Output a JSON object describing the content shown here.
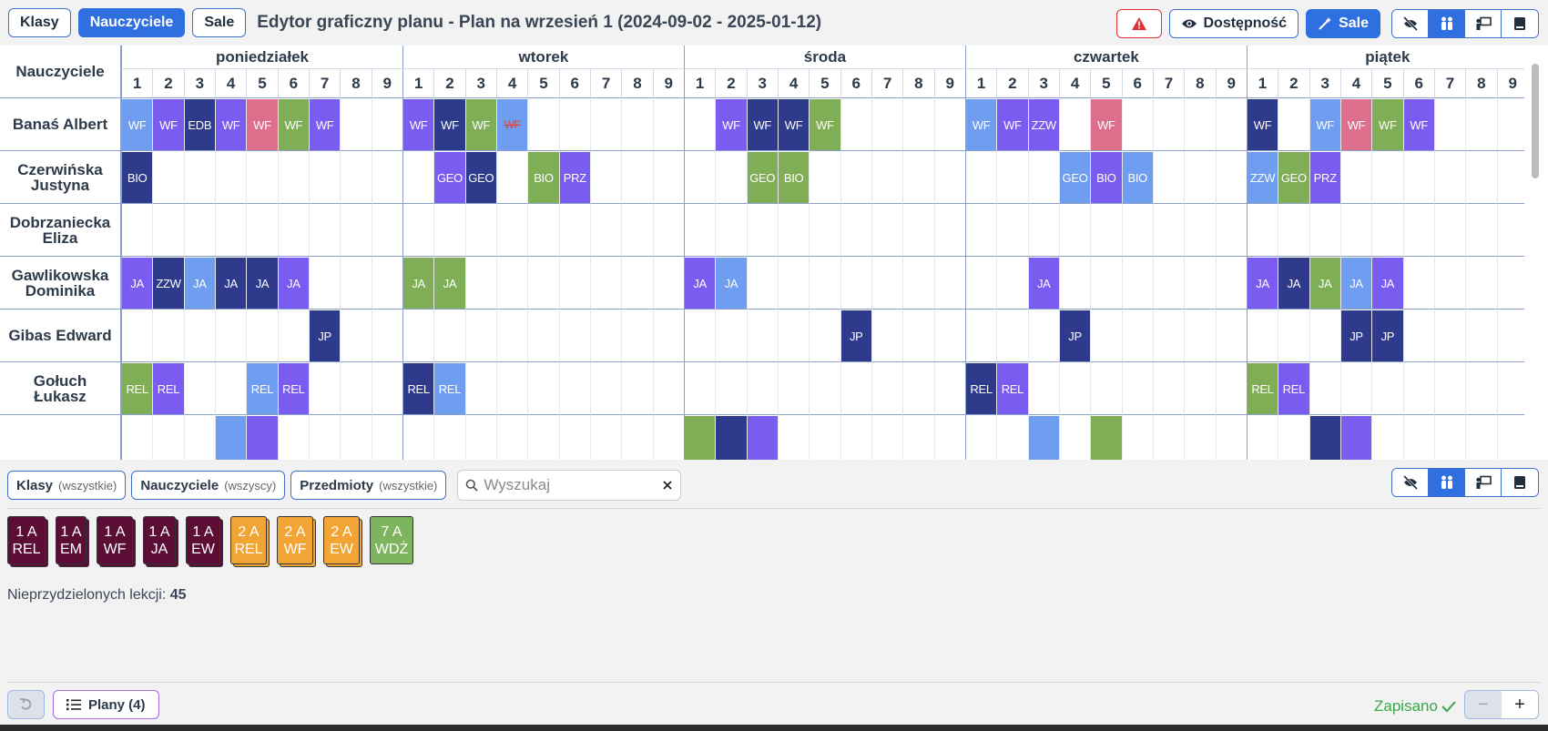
{
  "toolbar": {
    "classes_label": "Klasy",
    "teachers_label": "Nauczyciele",
    "rooms_label": "Sale",
    "title": "Edytor graficzny planu - Plan na wrzesień 1 (2024-09-02 - 2025-01-12)",
    "availability_label": "Dostępność",
    "rooms_magic_label": "Sale"
  },
  "grid": {
    "corner_label": "Nauczyciele",
    "days": [
      "poniedziałek",
      "wtorek",
      "środa",
      "czwartek",
      "piątek"
    ],
    "periods": [
      "1",
      "2",
      "3",
      "4",
      "5",
      "6",
      "7",
      "8",
      "9"
    ],
    "teachers": [
      "Banaś Albert",
      "Czerwińska Justyna",
      "Dobrzaniecka Eliza",
      "Gawlikowska Dominika",
      "Gibas Edward",
      "Gołuch Łukasz"
    ],
    "lessons": [
      [
        [
          0,
          0,
          "WF",
          "b"
        ],
        [
          0,
          1,
          "WF",
          "v"
        ],
        [
          0,
          2,
          "EDB",
          "n"
        ],
        [
          0,
          3,
          "WF",
          "v"
        ],
        [
          0,
          4,
          "WF",
          "p"
        ],
        [
          0,
          5,
          "WF",
          "g"
        ],
        [
          0,
          6,
          "WF",
          "v"
        ],
        [
          1,
          0,
          "WF",
          "v"
        ],
        [
          1,
          1,
          "WF",
          "n"
        ],
        [
          1,
          2,
          "WF",
          "g"
        ],
        [
          1,
          3,
          "WF",
          "b",
          "warn"
        ],
        [
          2,
          1,
          "WF",
          "v"
        ],
        [
          2,
          2,
          "WF",
          "n"
        ],
        [
          2,
          3,
          "WF",
          "n"
        ],
        [
          2,
          4,
          "WF",
          "g"
        ],
        [
          3,
          0,
          "WF",
          "b"
        ],
        [
          3,
          1,
          "WF",
          "v"
        ],
        [
          3,
          2,
          "ZZW",
          "v"
        ],
        [
          3,
          4,
          "WF",
          "p"
        ],
        [
          4,
          0,
          "WF",
          "n"
        ],
        [
          4,
          2,
          "WF",
          "b"
        ],
        [
          4,
          3,
          "WF",
          "p"
        ],
        [
          4,
          4,
          "WF",
          "g"
        ],
        [
          4,
          5,
          "WF",
          "v"
        ]
      ],
      [
        [
          0,
          0,
          "BIO",
          "n"
        ],
        [
          1,
          1,
          "GEO",
          "v"
        ],
        [
          1,
          2,
          "GEO",
          "n"
        ],
        [
          1,
          4,
          "BIO",
          "g"
        ],
        [
          1,
          5,
          "PRZ",
          "v"
        ],
        [
          2,
          2,
          "GEO",
          "g"
        ],
        [
          2,
          3,
          "BIO",
          "g"
        ],
        [
          3,
          3,
          "GEO",
          "b"
        ],
        [
          3,
          4,
          "BIO",
          "v"
        ],
        [
          3,
          5,
          "BIO",
          "b"
        ],
        [
          4,
          0,
          "ZZW",
          "b"
        ],
        [
          4,
          1,
          "GEO",
          "g"
        ],
        [
          4,
          2,
          "PRZ",
          "v"
        ]
      ],
      [],
      [
        [
          0,
          0,
          "JA",
          "v"
        ],
        [
          0,
          1,
          "ZZW",
          "n"
        ],
        [
          0,
          2,
          "JA",
          "b"
        ],
        [
          0,
          3,
          "JA",
          "n"
        ],
        [
          0,
          4,
          "JA",
          "n"
        ],
        [
          0,
          5,
          "JA",
          "v"
        ],
        [
          1,
          0,
          "JA",
          "g"
        ],
        [
          1,
          1,
          "JA",
          "g"
        ],
        [
          2,
          0,
          "JA",
          "v"
        ],
        [
          2,
          1,
          "JA",
          "b"
        ],
        [
          3,
          2,
          "JA",
          "v"
        ],
        [
          4,
          0,
          "JA",
          "v"
        ],
        [
          4,
          1,
          "JA",
          "n"
        ],
        [
          4,
          2,
          "JA",
          "g"
        ],
        [
          4,
          3,
          "JA",
          "b"
        ],
        [
          4,
          4,
          "JA",
          "v"
        ]
      ],
      [
        [
          0,
          6,
          "JP",
          "n"
        ],
        [
          2,
          5,
          "JP",
          "n"
        ],
        [
          3,
          3,
          "JP",
          "n"
        ],
        [
          4,
          3,
          "JP",
          "n"
        ],
        [
          4,
          4,
          "JP",
          "n"
        ]
      ],
      [
        [
          0,
          0,
          "REL",
          "g"
        ],
        [
          0,
          1,
          "REL",
          "v"
        ],
        [
          0,
          4,
          "REL",
          "b"
        ],
        [
          0,
          5,
          "REL",
          "v"
        ],
        [
          1,
          0,
          "REL",
          "n"
        ],
        [
          1,
          1,
          "REL",
          "b"
        ],
        [
          3,
          0,
          "REL",
          "n"
        ],
        [
          3,
          1,
          "REL",
          "v"
        ],
        [
          4,
          0,
          "REL",
          "g"
        ],
        [
          4,
          1,
          "REL",
          "v"
        ]
      ]
    ],
    "partial_row": [
      [
        0,
        3,
        "b"
      ],
      [
        0,
        4,
        "v"
      ],
      [
        2,
        0,
        "g"
      ],
      [
        2,
        1,
        "n"
      ],
      [
        2,
        2,
        "v"
      ],
      [
        3,
        2,
        "b"
      ],
      [
        3,
        4,
        "g"
      ],
      [
        4,
        2,
        "n"
      ],
      [
        4,
        3,
        "v"
      ]
    ]
  },
  "colors": {
    "b": "#6f9ef0",
    "v": "#7b5cf0",
    "n": "#2e3a8c",
    "g": "#7fae56",
    "p": "#dd6f8c",
    "accent": "#2f6fe0",
    "saved": "#3aa64a"
  },
  "filters": {
    "classes_label": "Klasy",
    "classes_hint": "(wszystkie)",
    "teachers_label": "Nauczyciele",
    "teachers_hint": "(wszyscy)",
    "subjects_label": "Przedmioty",
    "subjects_hint": "(wszystkie)",
    "search_placeholder": "Wyszukaj"
  },
  "cards": [
    {
      "line1": "1 A",
      "line2": "REL",
      "color": "maroon"
    },
    {
      "line1": "1 A",
      "line2": "EM",
      "color": "maroon"
    },
    {
      "line1": "1 A",
      "line2": "WF",
      "color": "maroon"
    },
    {
      "line1": "1 A",
      "line2": "JA",
      "color": "maroon"
    },
    {
      "line1": "1 A",
      "line2": "EW",
      "color": "maroon"
    },
    {
      "line1": "2 A",
      "line2": "REL",
      "color": "orange"
    },
    {
      "line1": "2 A",
      "line2": "WF",
      "color": "orange"
    },
    {
      "line1": "2 A",
      "line2": "EW",
      "color": "orange"
    },
    {
      "line1": "7 A",
      "line2": "WDŻ",
      "color": "green"
    }
  ],
  "footer": {
    "unassigned_label": "Nieprzydzielonych lekcji:",
    "unassigned_count": "45",
    "plans_label": "Plany (4)",
    "saved_label": "Zapisano"
  }
}
